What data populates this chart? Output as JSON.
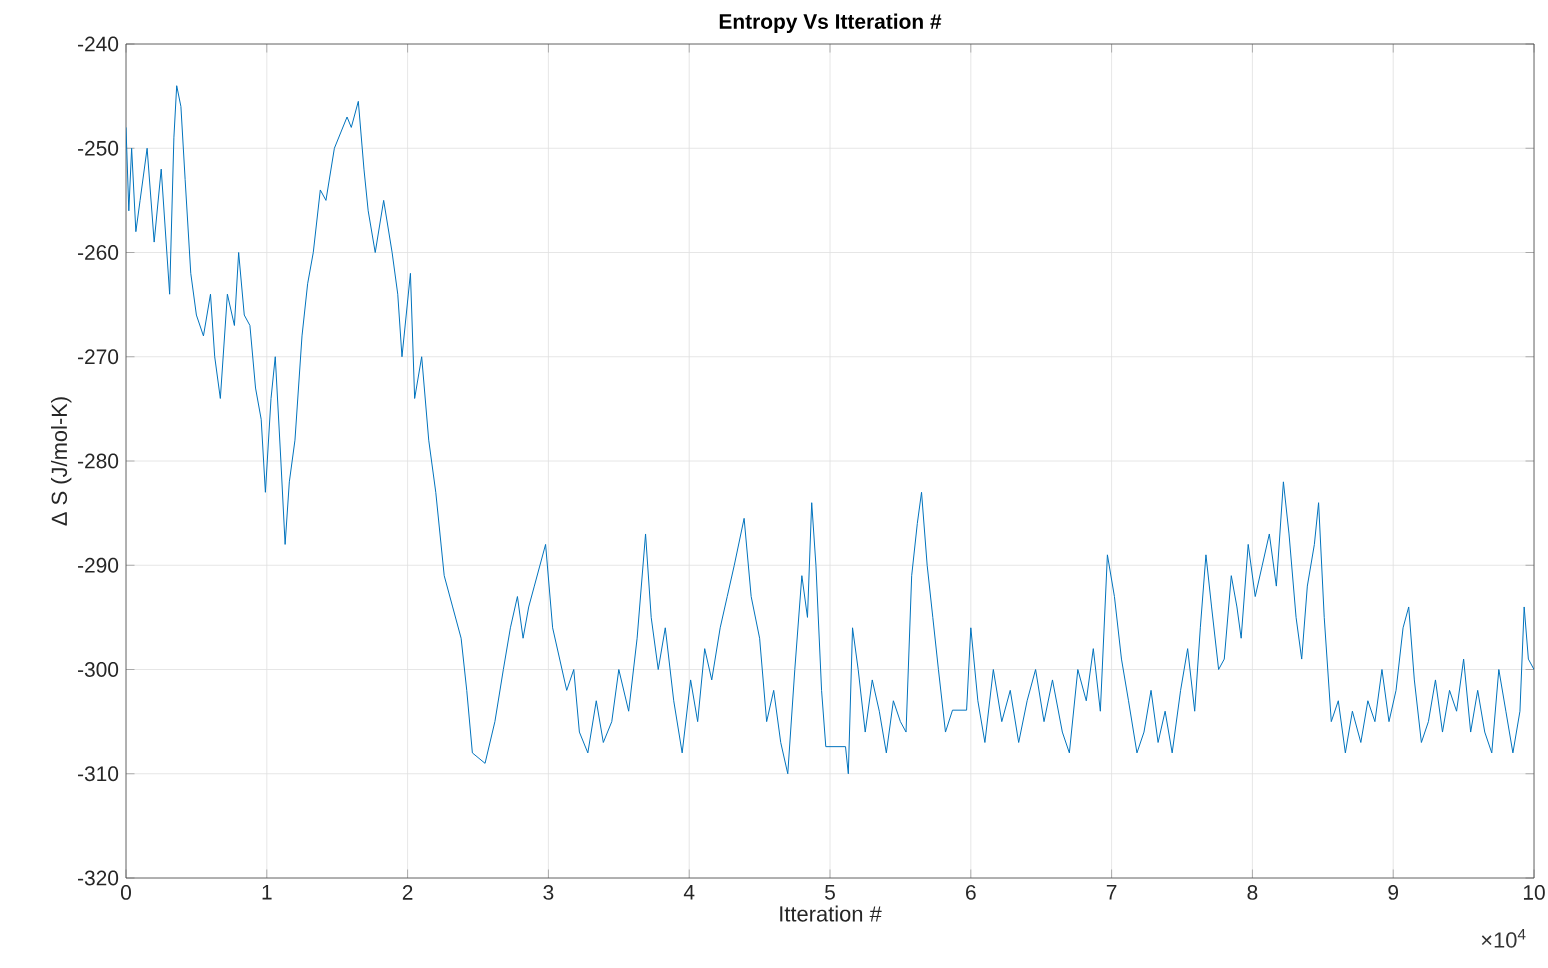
{
  "chart_data": {
    "type": "line",
    "title": "**Entropy Vs Itteration #**",
    "xlabel": "Itteration #",
    "ylabel": "Δ S (J/mol-K)",
    "annotations": [
      "×10$^{4}$"
    ],
    "xlim": [
      0,
      10
    ],
    "ylim": [
      -320,
      -240
    ],
    "xticks": [
      0,
      1,
      2,
      3,
      4,
      5,
      6,
      7,
      8,
      9,
      10
    ],
    "yticks": [
      -320,
      -310,
      -300,
      -290,
      -280,
      -270,
      -260,
      -250,
      -240
    ],
    "grid": true,
    "marker": "none",
    "line_style": "solid",
    "series": [
      {
        "color": "#0072bd",
        "x": [
          0,
          0.02,
          0.04,
          0.07,
          0.1,
          0.15,
          0.2,
          0.25,
          0.31,
          0.34,
          0.36,
          0.39,
          0.42,
          0.46,
          0.5,
          0.55,
          0.6,
          0.63,
          0.67,
          0.72,
          0.77,
          0.8,
          0.84,
          0.88,
          0.92,
          0.96,
          0.99,
          1.03,
          1.06,
          1.1,
          1.13,
          1.16,
          1.2,
          1.25,
          1.29,
          1.33,
          1.38,
          1.42,
          1.48,
          1.57,
          1.6,
          1.65,
          1.69,
          1.72,
          1.77,
          1.83,
          1.89,
          1.93,
          1.96,
          2.02,
          2.05,
          2.1,
          2.15,
          2.2,
          2.26,
          2.32,
          2.38,
          2.42,
          2.46,
          2.55,
          2.62,
          2.68,
          2.73,
          2.78,
          2.82,
          2.86,
          2.9,
          2.98,
          3.03,
          3.08,
          3.13,
          3.18,
          3.22,
          3.28,
          3.34,
          3.39,
          3.45,
          3.5,
          3.57,
          3.63,
          3.69,
          3.73,
          3.78,
          3.83,
          3.89,
          3.95,
          4.01,
          4.06,
          4.11,
          4.16,
          4.22,
          4.27,
          4.32,
          4.39,
          4.44,
          4.5,
          4.55,
          4.6,
          4.65,
          4.7,
          4.75,
          4.8,
          4.84,
          4.87,
          4.9,
          4.94,
          4.97,
          5.11,
          5.13,
          5.16,
          5.2,
          5.25,
          5.3,
          5.35,
          5.4,
          5.45,
          5.5,
          5.54,
          5.58,
          5.62,
          5.65,
          5.69,
          5.73,
          5.77,
          5.82,
          5.87,
          5.97,
          6,
          6.05,
          6.1,
          6.16,
          6.22,
          6.28,
          6.34,
          6.4,
          6.46,
          6.52,
          6.58,
          6.65,
          6.7,
          6.76,
          6.82,
          6.87,
          6.92,
          6.97,
          7.02,
          7.07,
          7.12,
          7.18,
          7.23,
          7.28,
          7.33,
          7.38,
          7.43,
          7.49,
          7.54,
          7.59,
          7.63,
          7.67,
          7.71,
          7.76,
          7.8,
          7.85,
          7.89,
          7.92,
          7.97,
          8.02,
          8.07,
          8.12,
          8.17,
          8.22,
          8.26,
          8.31,
          8.35,
          8.39,
          8.44,
          8.47,
          8.51,
          8.56,
          8.61,
          8.66,
          8.71,
          8.77,
          8.82,
          8.87,
          8.92,
          8.97,
          9.02,
          9.07,
          9.11,
          9.15,
          9.2,
          9.25,
          9.3,
          9.35,
          9.4,
          9.45,
          9.5,
          9.55,
          9.6,
          9.65,
          9.7,
          9.75,
          9.8,
          9.85,
          9.9,
          9.93,
          9.96,
          10
        ],
        "values": [
          -248,
          -256,
          -250,
          -258,
          -255,
          -250,
          -259,
          -252,
          -264,
          -249,
          -244,
          -246,
          -253,
          -262,
          -266,
          -268,
          -264,
          -270,
          -274,
          -264,
          -267,
          -260,
          -266,
          -267,
          -273,
          -276,
          -283,
          -274,
          -270,
          -280,
          -288,
          -282,
          -278,
          -268,
          -263,
          -260,
          -254,
          -255,
          -250,
          -247,
          -248,
          -245.5,
          -252,
          -256,
          -260,
          -255,
          -260,
          -264,
          -270,
          -262,
          -274,
          -270,
          -278,
          -283,
          -291,
          -294,
          -297,
          -302,
          -308,
          -309,
          -305,
          -300,
          -296,
          -293,
          -297,
          -294,
          -292,
          -288,
          -296,
          -299,
          -302,
          -300,
          -306,
          -308,
          -303,
          -307,
          -305,
          -300,
          -304,
          -297,
          -287,
          -295,
          -300,
          -296,
          -303,
          -308,
          -301,
          -305,
          -298,
          -301,
          -296,
          -293,
          -290,
          -285.5,
          -293,
          -297,
          -305,
          -302,
          -307,
          -310,
          -300,
          -291,
          -295,
          -284,
          -290,
          -302,
          -307.4,
          -307.4,
          -310,
          -296,
          -300,
          -306,
          -301,
          -304,
          -308,
          -303,
          -305,
          -306,
          -291,
          -286,
          -283,
          -290,
          -295,
          -300,
          -306,
          -303.9,
          -303.9,
          -296,
          -303,
          -307,
          -300,
          -305,
          -302,
          -307,
          -303,
          -300,
          -305,
          -301,
          -306,
          -308,
          -300,
          -303,
          -298,
          -304,
          -289,
          -293,
          -299,
          -303,
          -308,
          -306,
          -302,
          -307,
          -304,
          -308,
          -302,
          -298,
          -304,
          -296,
          -289,
          -294,
          -300,
          -299,
          -291,
          -294,
          -297,
          -288,
          -293,
          -290,
          -287,
          -292,
          -282,
          -287,
          -295,
          -299,
          -292,
          -288,
          -284,
          -295,
          -305,
          -303,
          -308,
          -304,
          -307,
          -303,
          -305,
          -300,
          -305,
          -302,
          -296,
          -294,
          -301,
          -307,
          -305,
          -301,
          -306,
          -302,
          -304,
          -299,
          -306,
          -302,
          -306,
          -308,
          -300,
          -304,
          -308,
          -304,
          -294,
          -299,
          -300
        ]
      }
    ]
  }
}
